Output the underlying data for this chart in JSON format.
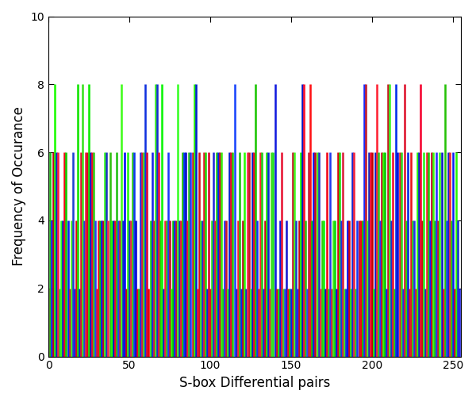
{
  "xlabel": "S-box Differential pairs",
  "ylabel": "Frequency of Occurance",
  "xlim": [
    0,
    255
  ],
  "ylim": [
    0,
    10
  ],
  "xticks": [
    0,
    50,
    100,
    150,
    200,
    250
  ],
  "yticks": [
    0,
    2,
    4,
    6,
    8,
    10
  ],
  "n_bars": 255,
  "seed": 7,
  "hue_step": 0.29,
  "hue_step2": 0.13,
  "figsize": [
    6.0,
    5.07
  ],
  "dpi": 100
}
